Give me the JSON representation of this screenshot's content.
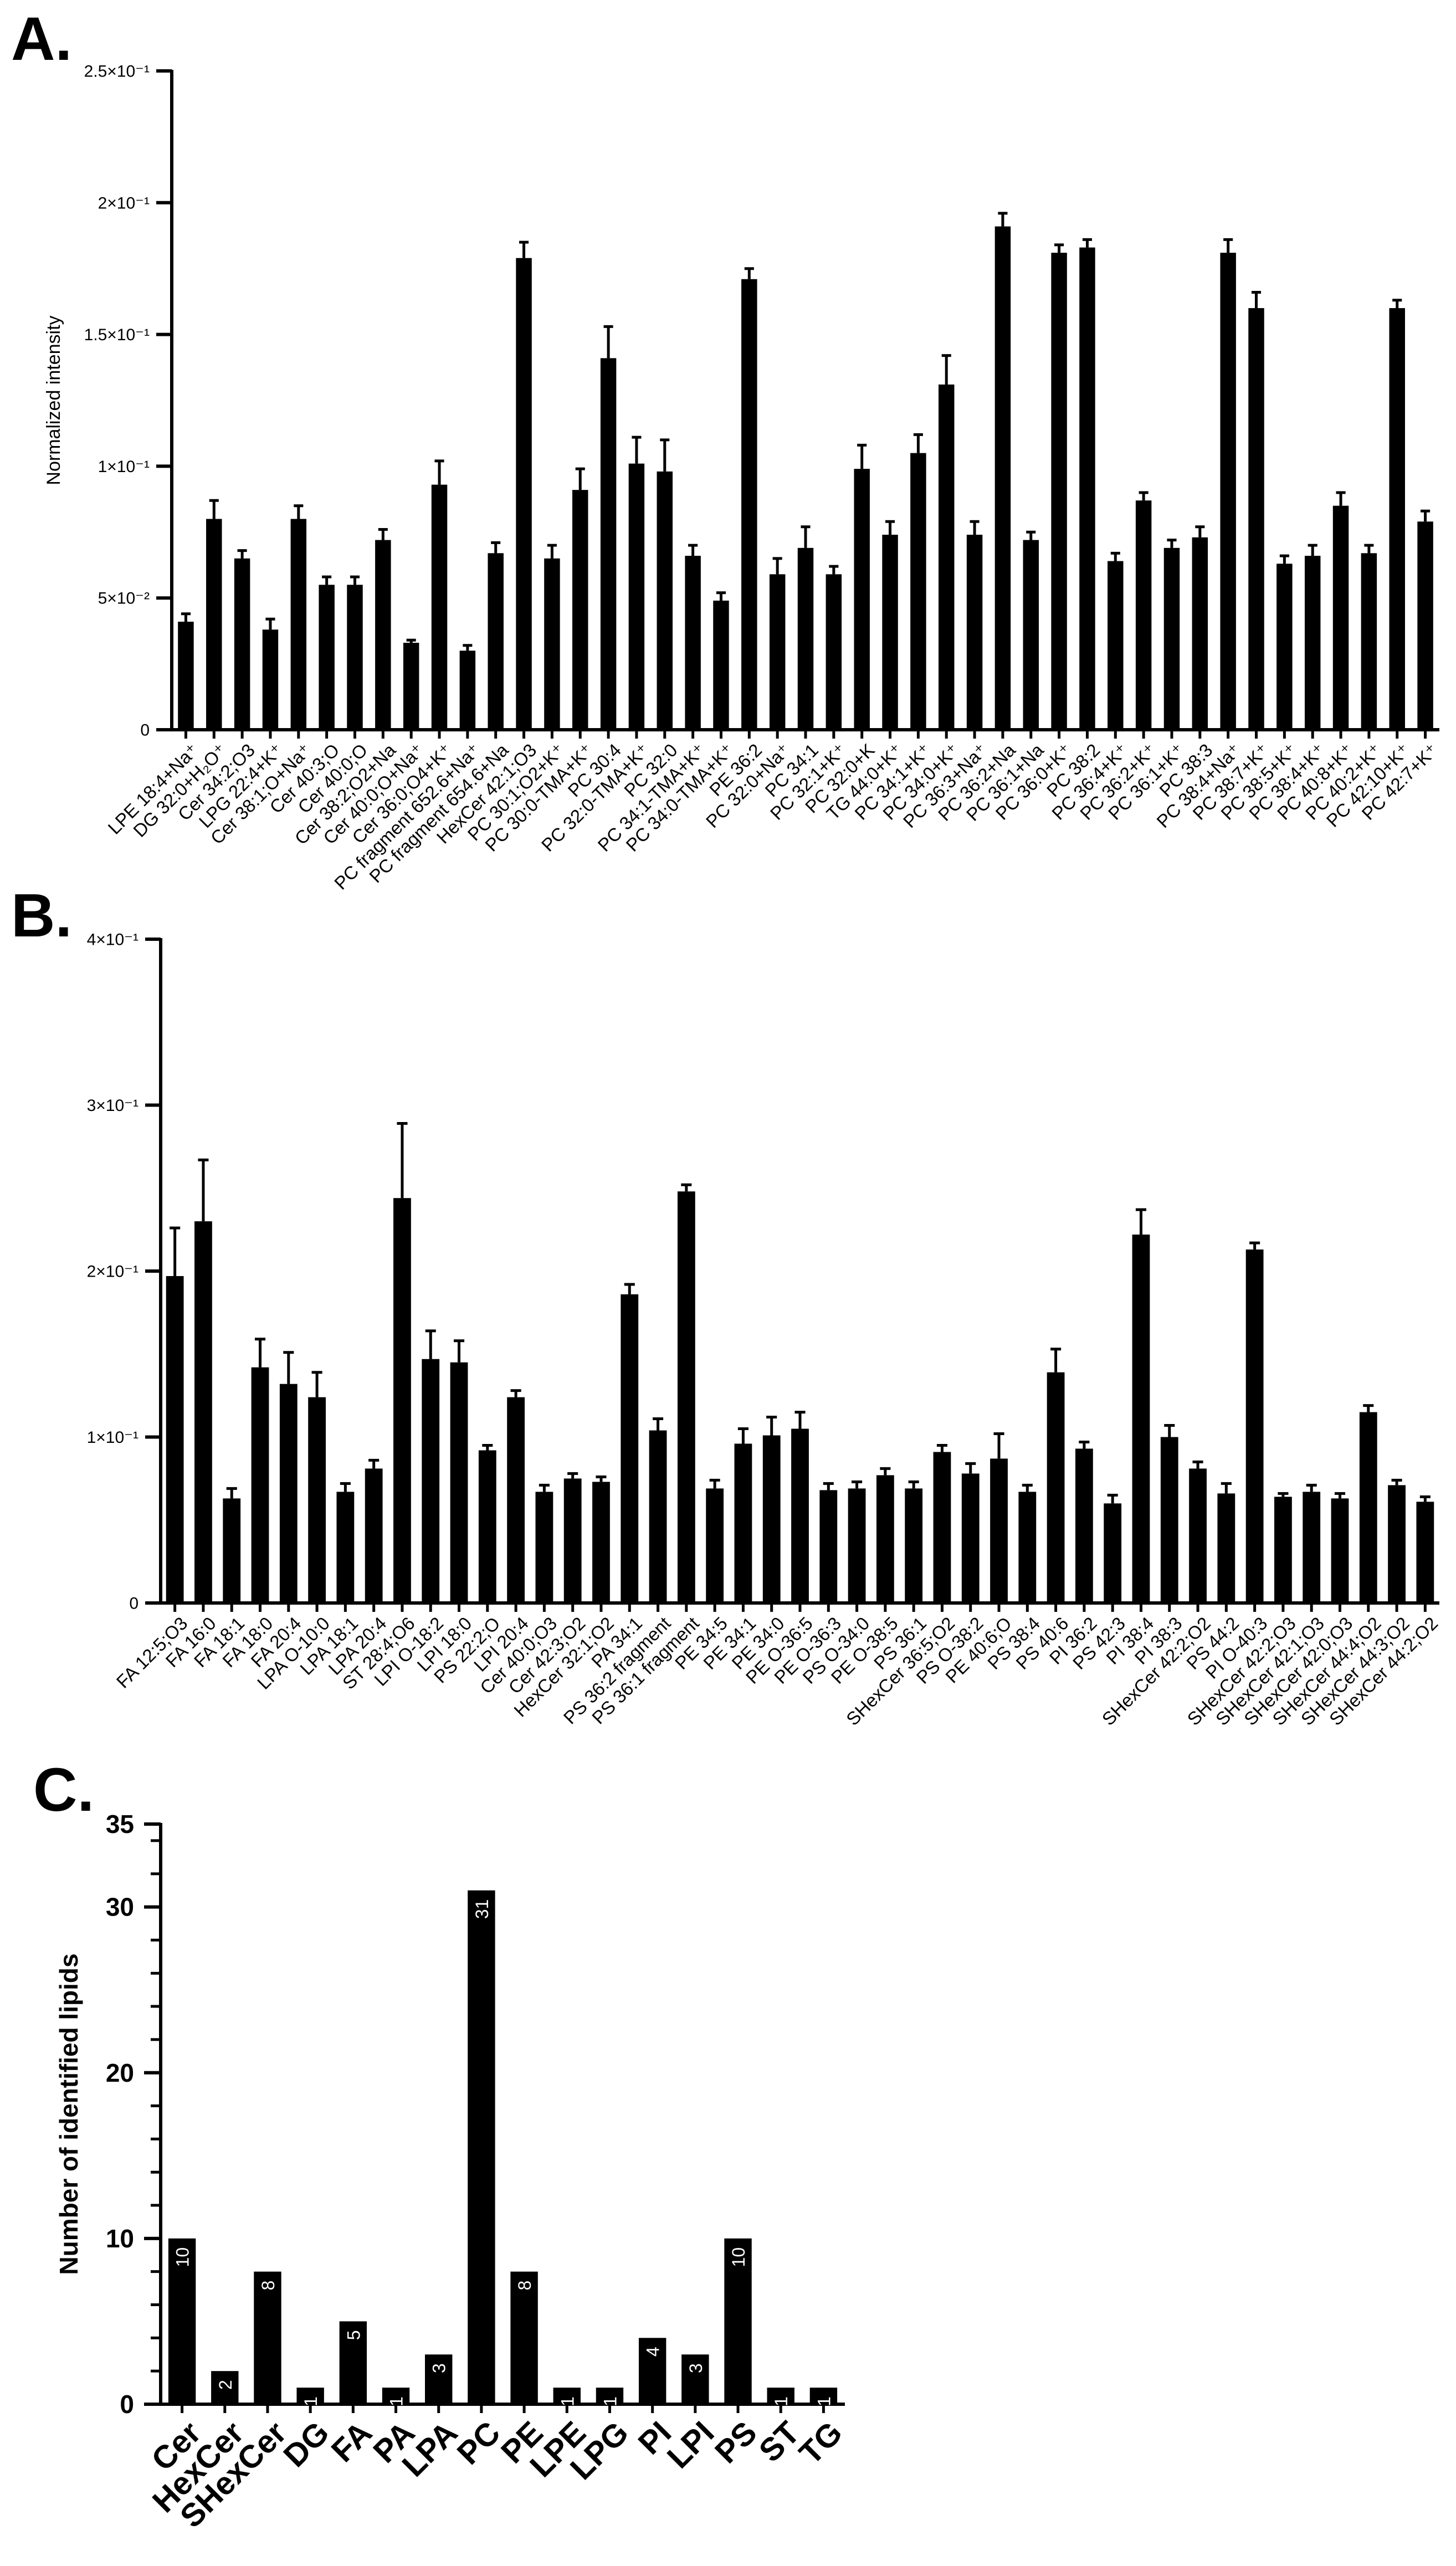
{
  "figure": {
    "panel_labels": [
      "A.",
      "B.",
      "C."
    ]
  },
  "colors": {
    "bar": "#000000",
    "axis": "#000000",
    "label_text": "#ffffff"
  },
  "chart_data": [
    {
      "panel": "A.",
      "type": "bar",
      "title": "",
      "xlabel": "",
      "ylabel": "Normalized intensity",
      "ylim": [
        0,
        0.25
      ],
      "yticks": [
        0,
        0.05,
        0.1,
        0.15,
        0.2,
        0.25
      ],
      "ytick_labels": [
        "0",
        "5×10⁻²",
        "1×10⁻¹",
        "1.5×10⁻¹",
        "2×10⁻¹",
        "2.5×10⁻¹"
      ],
      "grid": false,
      "categories": [
        "LPE 18:4+Na⁺",
        "DG 32:0+H₂O⁺",
        "Cer 34:2;O3",
        "LPG 22:4+K⁺",
        "Cer 38:1;O+Na⁺",
        "Cer 40:3;O",
        "Cer 40:0;O",
        "Cer 38:2;O2+Na",
        "Cer 40:0;O+Na⁺",
        "Cer 36:0;O4+K⁺",
        "PC fragment 652.6+Na⁺",
        "PC fragment 654.6+Na",
        "HexCer 42:1;O3",
        "PC 30:1;O2+K⁺",
        "PC 30:0-TMA+K⁺",
        "PC 30:4",
        "PC 32:0-TMA+K⁺",
        "PC 32:0",
        "PC 34:1-TMA+K⁺",
        "PC 34:0-TMA+K⁺",
        "PE 36:2",
        "PC 32:0+Na⁺",
        "PC 34:1",
        "PC 32:1+K⁺",
        "PC 32:0+K",
        "TG 44:0+K⁺",
        "PC 34:1+K⁺",
        "PC 34:0+K⁺",
        "PC 36:3+Na⁺",
        "PC 36:2+Na",
        "PC 36:1+Na",
        "PC 36:0+K⁺",
        "PC 38:2",
        "PC 36:4+K⁺",
        "PC 36:2+K⁺",
        "PC 36:1+K⁺",
        "PC 38:3",
        "PC 38:4+Na⁺",
        "PC 38:7+K⁺",
        "PC 38:5+K⁺",
        "PC 38:4+K⁺",
        "PC 40:8+K⁺",
        "PC 40:2+K⁺",
        "PC 42:10+K⁺",
        "PC 42:7+K⁺"
      ],
      "values": [
        0.041,
        0.08,
        0.065,
        0.038,
        0.08,
        0.055,
        0.055,
        0.072,
        0.033,
        0.093,
        0.03,
        0.067,
        0.179,
        0.065,
        0.091,
        0.141,
        0.101,
        0.098,
        0.066,
        0.049,
        0.171,
        0.059,
        0.069,
        0.059,
        0.099,
        0.074,
        0.105,
        0.131,
        0.074,
        0.191,
        0.072,
        0.181,
        0.183,
        0.064,
        0.087,
        0.069,
        0.073,
        0.181,
        0.16,
        0.063,
        0.066,
        0.085,
        0.067,
        0.16,
        0.079
      ],
      "errors": [
        0.003,
        0.007,
        0.003,
        0.004,
        0.005,
        0.003,
        0.003,
        0.004,
        0.001,
        0.009,
        0.002,
        0.004,
        0.006,
        0.005,
        0.008,
        0.012,
        0.01,
        0.012,
        0.004,
        0.003,
        0.004,
        0.006,
        0.008,
        0.003,
        0.009,
        0.005,
        0.007,
        0.011,
        0.005,
        0.005,
        0.003,
        0.003,
        0.003,
        0.003,
        0.003,
        0.003,
        0.004,
        0.005,
        0.006,
        0.003,
        0.004,
        0.005,
        0.003,
        0.003,
        0.004
      ]
    },
    {
      "panel": "B.",
      "type": "bar",
      "title": "",
      "xlabel": "",
      "ylabel": "",
      "ylim": [
        0,
        0.4
      ],
      "yticks": [
        0,
        0.1,
        0.2,
        0.3,
        0.4
      ],
      "ytick_labels": [
        "0",
        "1×10⁻¹",
        "2×10⁻¹",
        "3×10⁻¹",
        "4×10⁻¹"
      ],
      "grid": false,
      "categories": [
        "FA 12:5;O3",
        "FA 16:0",
        "FA 18:1",
        "FA 18:0",
        "FA 20:4",
        "LPA O-10:0",
        "LPA 18:1",
        "LPA 20:4",
        "ST 28:4;O6",
        "LPI O-18:2",
        "LPI 18:0",
        "PS 22:2;O",
        "LPI 20:4",
        "Cer 40:0;O3",
        "Cer 42:3;O2",
        "HexCer 32:1;O2",
        "PA 34:1",
        "PS 36:2 fragment",
        "PS 36:1 fragment",
        "PE 34:5",
        "PE 34:1",
        "PE 34:0",
        "PE O-36:5",
        "PE O-36:3",
        "PS O-34:0",
        "PE O-38:5",
        "PS 36:1",
        "SHexCer 36:5;O2",
        "PS O-38:2",
        "PE 40:6;O",
        "PS 38:4",
        "PS 40:6",
        "PI 36:2",
        "PS 42:3",
        "PI 38:4",
        "PI 38:3",
        "SHexCer 42:2;O2",
        "PS 44:2",
        "PI O-40:3",
        "SHexCer 42:2;O3",
        "SHexCer 42:1;O3",
        "SHexCer 42:0;O3",
        "SHexCer 44:4;O2",
        "SHexCer 44:3;O2",
        "SHexCer 44:2;O2"
      ],
      "values": [
        0.197,
        0.23,
        0.063,
        0.142,
        0.132,
        0.124,
        0.067,
        0.081,
        0.244,
        0.147,
        0.145,
        0.092,
        0.124,
        0.067,
        0.075,
        0.073,
        0.186,
        0.104,
        0.248,
        0.069,
        0.096,
        0.101,
        0.105,
        0.068,
        0.069,
        0.077,
        0.069,
        0.091,
        0.078,
        0.087,
        0.067,
        0.139,
        0.093,
        0.06,
        0.222,
        0.1,
        0.081,
        0.066,
        0.213,
        0.064,
        0.067,
        0.063,
        0.115,
        0.071,
        0.061
      ],
      "errors": [
        0.029,
        0.037,
        0.006,
        0.017,
        0.019,
        0.015,
        0.005,
        0.005,
        0.045,
        0.017,
        0.013,
        0.003,
        0.004,
        0.004,
        0.003,
        0.003,
        0.006,
        0.007,
        0.004,
        0.005,
        0.009,
        0.011,
        0.01,
        0.004,
        0.004,
        0.004,
        0.004,
        0.004,
        0.006,
        0.015,
        0.004,
        0.014,
        0.004,
        0.005,
        0.015,
        0.007,
        0.004,
        0.006,
        0.004,
        0.002,
        0.004,
        0.003,
        0.004,
        0.003,
        0.003
      ]
    },
    {
      "panel": "C.",
      "type": "bar",
      "title": "",
      "xlabel": "",
      "ylabel": "Number of identified lipids",
      "ylim": [
        0,
        35
      ],
      "yticks": [
        0,
        10,
        20,
        30
      ],
      "ytick_labels": [
        "0",
        "10",
        "20",
        "30"
      ],
      "ymax_label": "35",
      "grid": false,
      "categories": [
        "Cer",
        "HexCer",
        "SHexCer",
        "DG",
        "FA",
        "PA",
        "LPA",
        "PC",
        "PE",
        "LPE",
        "LPG",
        "PI",
        "LPI",
        "PS",
        "ST",
        "TG"
      ],
      "values": [
        10,
        2,
        8,
        1,
        5,
        1,
        3,
        31,
        8,
        1,
        1,
        4,
        3,
        10,
        1,
        1
      ],
      "data_labels": [
        "10",
        "2",
        "8",
        "1",
        "5",
        "1",
        "3",
        "31",
        "8",
        "1",
        "1",
        "4",
        "3",
        "10",
        "1",
        "1"
      ]
    }
  ]
}
